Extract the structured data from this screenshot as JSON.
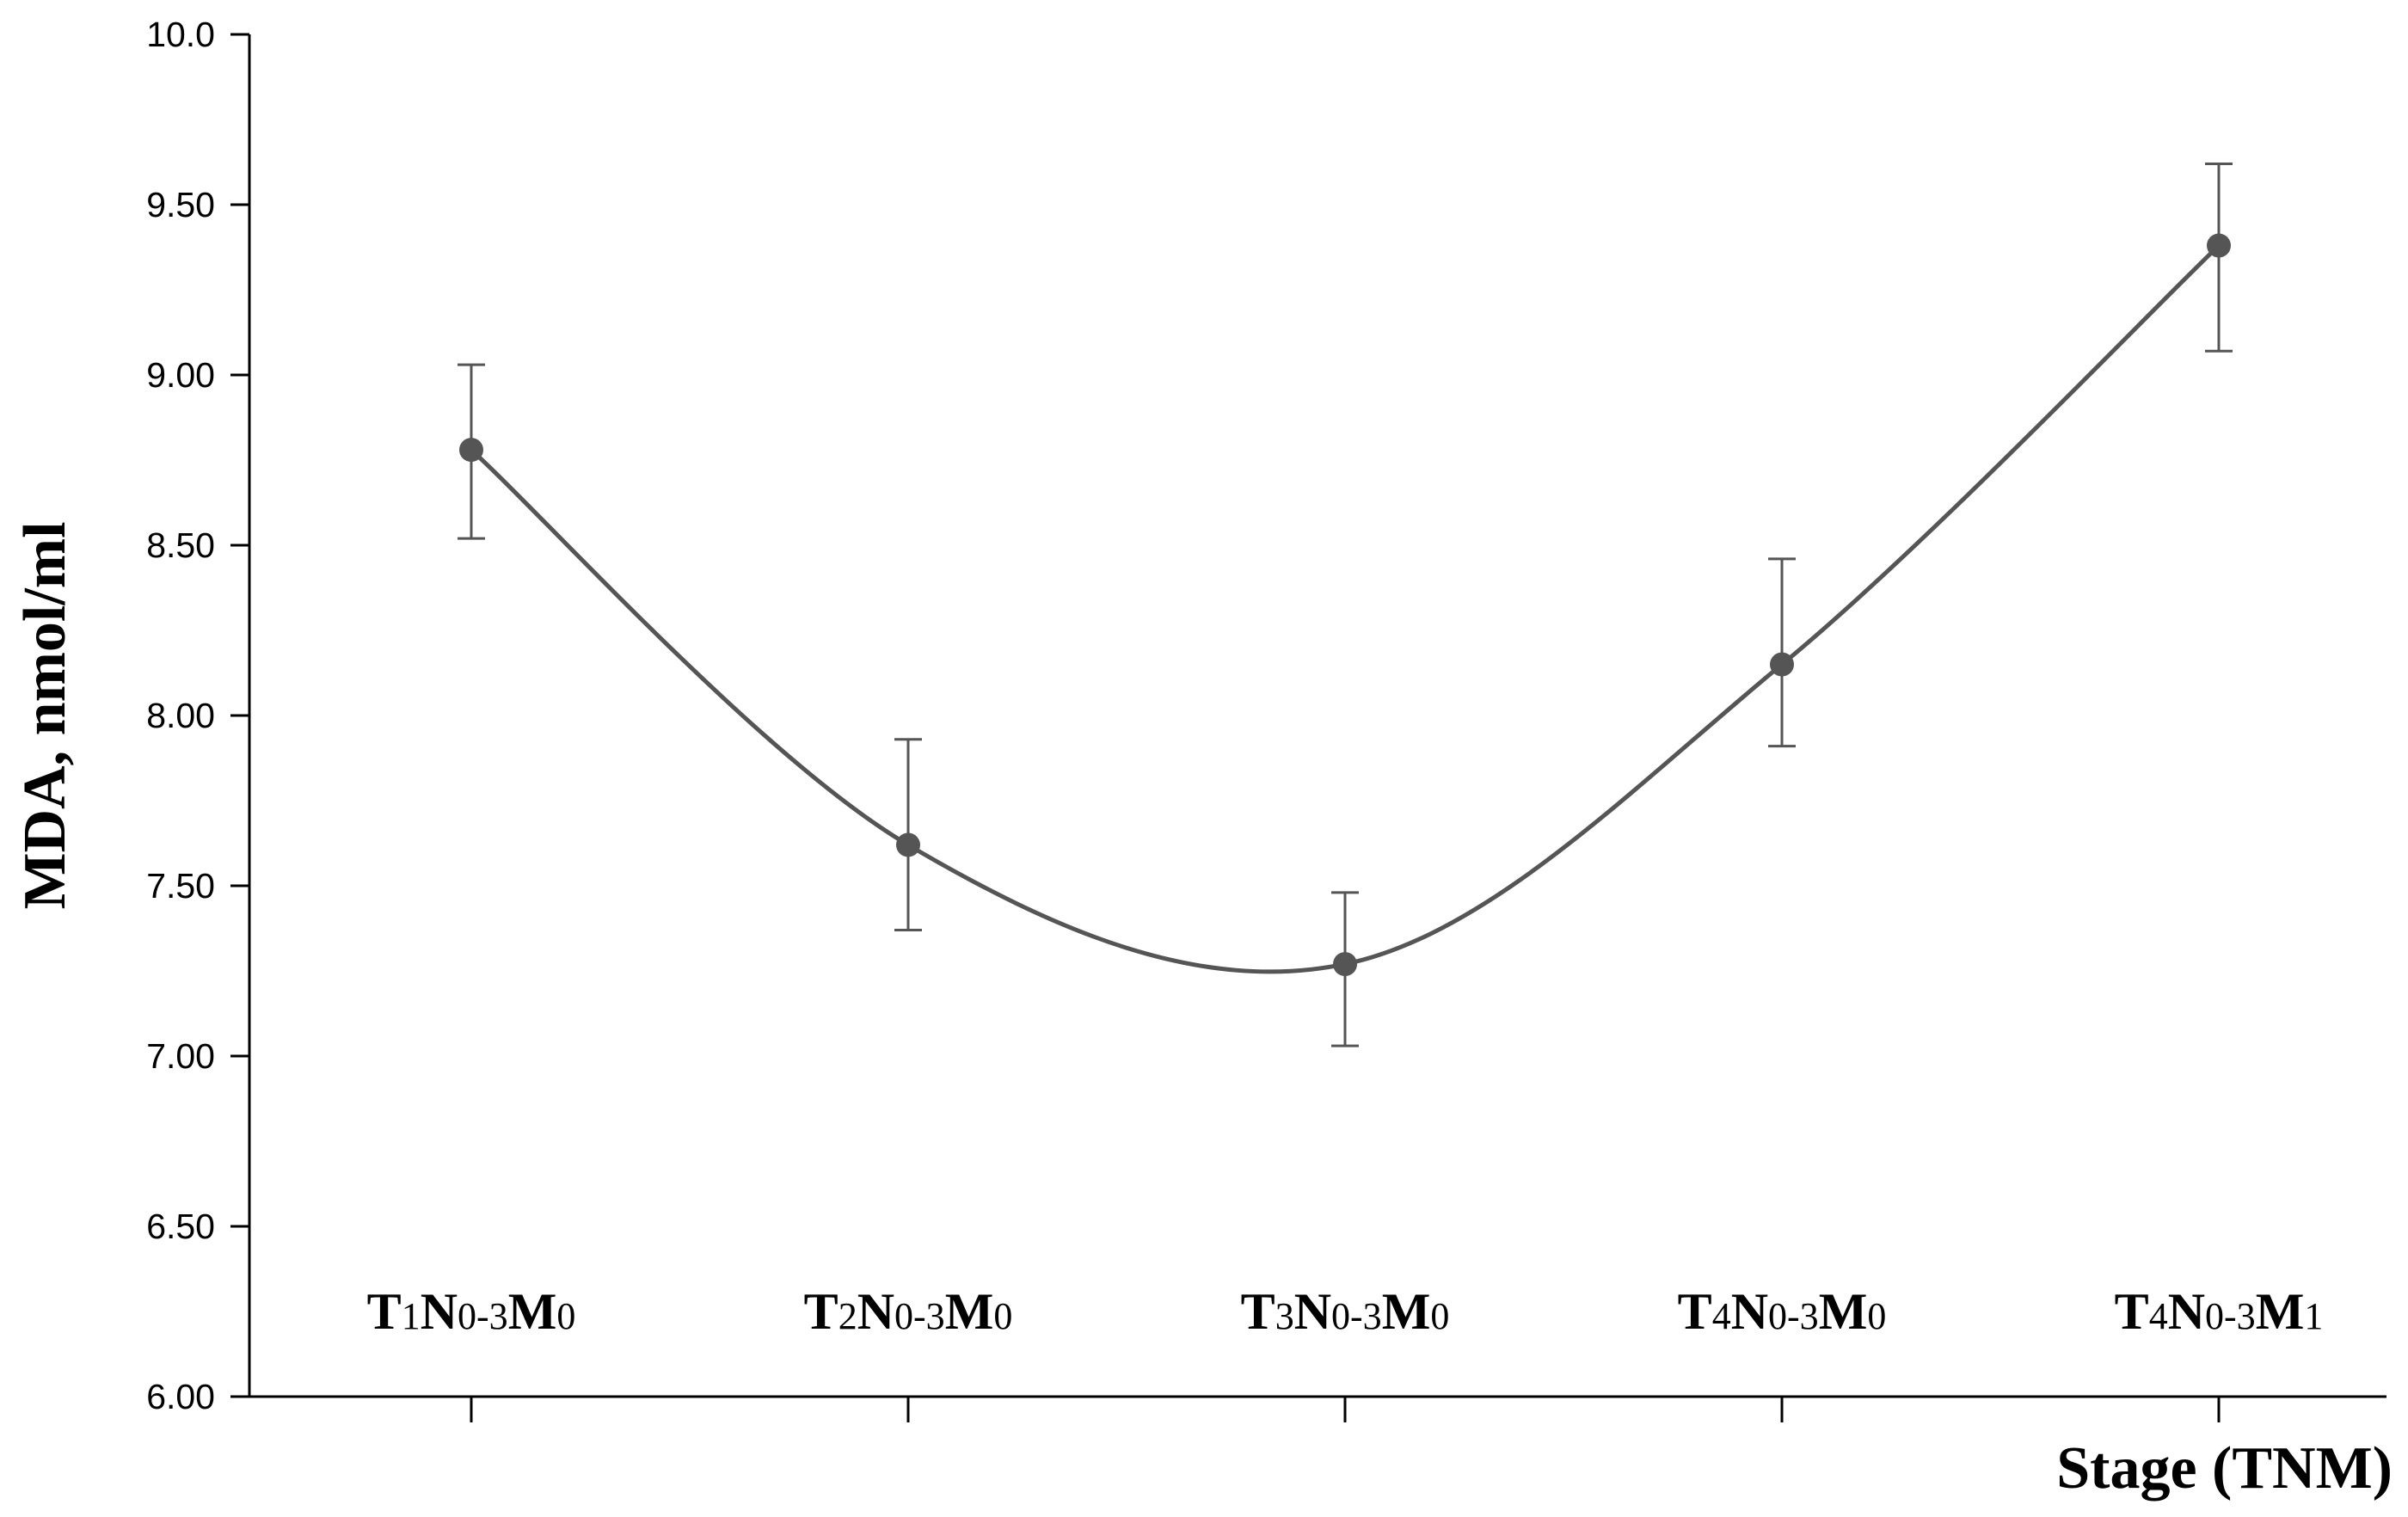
{
  "chart_data": {
    "type": "line",
    "title": "",
    "xlabel": "Stage (TNM)",
    "ylabel": "MDA, nmol/ml",
    "categories": [
      {
        "main": "T",
        "sub1": "1",
        "mid": "N",
        "sub2": "0-3",
        "mid2": "M",
        "sub3": "0"
      },
      {
        "main": "T",
        "sub1": "2",
        "mid": "N",
        "sub2": "0-3",
        "mid2": "M",
        "sub3": "0"
      },
      {
        "main": "T",
        "sub1": "3",
        "mid": "N",
        "sub2": "0-3",
        "mid2": "M",
        "sub3": "0"
      },
      {
        "main": "T",
        "sub1": "4",
        "mid": "N",
        "sub2": "0-3",
        "mid2": "M",
        "sub3": "0"
      },
      {
        "main": "T",
        "sub1": "4",
        "mid": "N",
        "sub2": "0-3",
        "mid2": "M",
        "sub3": "1"
      }
    ],
    "series": [
      {
        "values": [
          8.78,
          7.62,
          7.27,
          8.15,
          9.38
        ],
        "error_upper": [
          9.03,
          7.93,
          7.48,
          8.46,
          9.62
        ],
        "error_lower": [
          8.52,
          7.37,
          7.03,
          7.91,
          9.07
        ],
        "color": "#555555",
        "smooth": true
      }
    ],
    "ylim": [
      6.0,
      10.0
    ],
    "yticks": [
      {
        "value": 6.0,
        "label": "6.00"
      },
      {
        "value": 6.5,
        "label": "6.50"
      },
      {
        "value": 7.0,
        "label": "7.00"
      },
      {
        "value": 7.5,
        "label": "7.50"
      },
      {
        "value": 8.0,
        "label": "8.00"
      },
      {
        "value": 8.5,
        "label": "8.50"
      },
      {
        "value": 9.0,
        "label": "9.00"
      },
      {
        "value": 9.5,
        "label": "9.50"
      },
      {
        "value": 10.0,
        "label": "10.0"
      }
    ],
    "grid": false,
    "legend": "none"
  }
}
